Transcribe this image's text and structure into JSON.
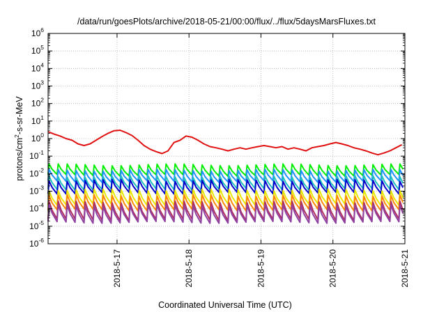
{
  "chart_data": {
    "type": "line",
    "title": "/data/run/goesPlots/archive/2018-05-21/00:00/flux/../flux/5daysMarsFluxes.txt",
    "xlabel": "Coordinated Universal Time (UTC)",
    "ylabel": {
      "prefix": "protons/cm",
      "exp": "2",
      "suffix": "-s-sr-MeV"
    },
    "yscale": "log",
    "ylim_exp": [
      -6,
      6
    ],
    "y_ticks": [
      {
        "base": "10",
        "exp": "-6"
      },
      {
        "base": "10",
        "exp": "-5"
      },
      {
        "base": "10",
        "exp": "-4"
      },
      {
        "base": "10",
        "exp": "-3"
      },
      {
        "base": "10",
        "exp": "-2"
      },
      {
        "base": "10",
        "exp": "-1"
      },
      {
        "base": "10",
        "exp": "0"
      },
      {
        "base": "10",
        "exp": "1"
      },
      {
        "base": "10",
        "exp": "2"
      },
      {
        "base": "10",
        "exp": "3"
      },
      {
        "base": "10",
        "exp": "4"
      },
      {
        "base": "10",
        "exp": "5"
      },
      {
        "base": "10",
        "exp": "6"
      }
    ],
    "xlim": [
      "2018-05-16T01:00",
      "2018-05-21T00:00"
    ],
    "x_ticks": [
      {
        "date": "2018-05-17T00:00",
        "label": "2018-5-17"
      },
      {
        "date": "2018-05-18T00:00",
        "label": "2018-5-18"
      },
      {
        "date": "2018-05-19T00:00",
        "label": "2018-5-19"
      },
      {
        "date": "2018-05-20T00:00",
        "label": "2018-5-20"
      },
      {
        "date": "2018-05-21T00:00",
        "label": "2018-5-21"
      }
    ],
    "grid": true,
    "series": [
      {
        "color": "#e01010",
        "x": [
          "2018-05-16T01:00",
          "2018-05-16T03:00",
          "2018-05-16T05:00",
          "2018-05-16T07:00",
          "2018-05-16T09:00",
          "2018-05-16T11:00",
          "2018-05-16T13:00",
          "2018-05-16T15:00",
          "2018-05-16T17:00",
          "2018-05-16T19:00",
          "2018-05-16T21:00",
          "2018-05-16T23:00",
          "2018-05-17T01:00",
          "2018-05-17T03:00",
          "2018-05-17T05:00",
          "2018-05-17T07:00",
          "2018-05-17T09:00",
          "2018-05-17T11:00",
          "2018-05-17T13:00",
          "2018-05-17T15:00",
          "2018-05-17T17:00",
          "2018-05-17T19:00",
          "2018-05-17T21:00",
          "2018-05-17T23:00",
          "2018-05-18T01:00",
          "2018-05-18T03:00",
          "2018-05-18T05:00",
          "2018-05-18T07:00",
          "2018-05-18T09:00",
          "2018-05-18T11:00",
          "2018-05-18T13:00",
          "2018-05-18T15:00",
          "2018-05-18T17:00",
          "2018-05-18T19:00",
          "2018-05-18T21:00",
          "2018-05-18T23:00",
          "2018-05-19T01:00",
          "2018-05-19T03:00",
          "2018-05-19T05:00",
          "2018-05-19T07:00",
          "2018-05-19T09:00",
          "2018-05-19T11:00",
          "2018-05-19T13:00",
          "2018-05-19T15:00",
          "2018-05-19T17:00",
          "2018-05-19T19:00",
          "2018-05-19T21:00",
          "2018-05-19T23:00",
          "2018-05-20T01:00",
          "2018-05-20T03:00",
          "2018-05-20T05:00",
          "2018-05-20T07:00",
          "2018-05-20T09:00",
          "2018-05-20T11:00",
          "2018-05-20T13:00",
          "2018-05-20T15:00",
          "2018-05-20T17:00",
          "2018-05-20T19:00",
          "2018-05-20T21:00",
          "2018-05-20T23:00"
        ],
        "values": [
          2.5,
          1.8,
          1.4,
          1.0,
          0.8,
          0.5,
          0.4,
          0.5,
          0.8,
          1.3,
          2.0,
          2.8,
          3.0,
          2.2,
          1.5,
          0.8,
          0.4,
          0.25,
          0.18,
          0.14,
          0.2,
          0.6,
          0.8,
          1.4,
          1.2,
          0.8,
          0.5,
          0.35,
          0.3,
          0.25,
          0.2,
          0.25,
          0.3,
          0.25,
          0.3,
          0.35,
          0.4,
          0.35,
          0.3,
          0.35,
          0.25,
          0.3,
          0.25,
          0.2,
          0.3,
          0.35,
          0.4,
          0.5,
          0.6,
          0.5,
          0.4,
          0.3,
          0.25,
          0.2,
          0.15,
          0.12,
          0.15,
          0.2,
          0.3,
          0.45
        ]
      },
      {
        "color": "#00ee00",
        "base": 0.016,
        "amp": 2.0
      },
      {
        "color": "#1e90ff",
        "base": 0.0075,
        "amp": 2.1
      },
      {
        "color": "#20c0c0",
        "base": 0.003,
        "amp": 2.3
      },
      {
        "color": "#0000cc",
        "base": 0.0018,
        "amp": 2.3
      },
      {
        "color": "#e8e800",
        "base": 0.00045,
        "amp": 2.6
      },
      {
        "color": "#ff8800",
        "base": 0.00022,
        "amp": 2.6
      },
      {
        "color": "#b03060",
        "base": 7.5e-05,
        "amp": 3.2
      },
      {
        "color": "#9040a0",
        "base": 5e-05,
        "amp": 3.0
      }
    ]
  }
}
